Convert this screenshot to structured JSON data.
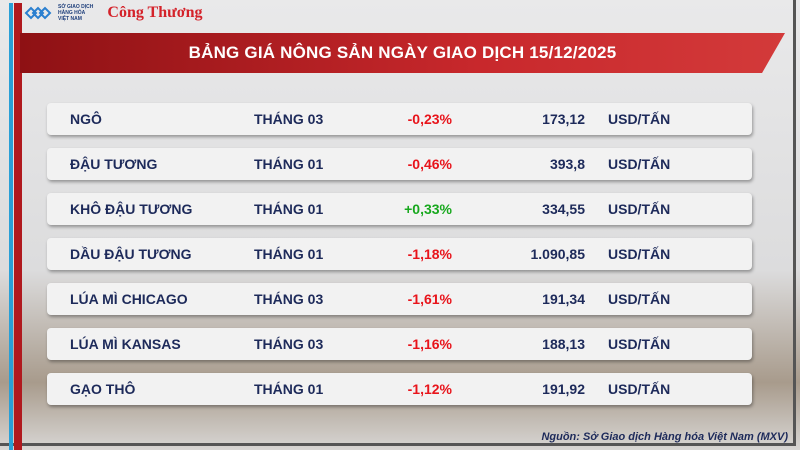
{
  "header": {
    "logo_text": "SỞ GIAO DỊCH HÀNG HÓA VIỆT NAM",
    "brand": "Công Thương",
    "title": "BẢNG GIÁ NÔNG SẢN NGÀY GIAO DỊCH 15/12/2025"
  },
  "colors": {
    "negative": "#e8141b",
    "positive": "#18a81e",
    "banner": "#c8282c",
    "text": "#1d2a5a"
  },
  "rows": [
    {
      "name": "NGÔ",
      "month": "THÁNG 03",
      "change": "-0,23%",
      "value": "173,12",
      "unit": "USD/TẤN",
      "dir": "neg"
    },
    {
      "name": "ĐẬU TƯƠNG",
      "month": "THÁNG 01",
      "change": "-0,46%",
      "value": "393,8",
      "unit": "USD/TẤN",
      "dir": "neg"
    },
    {
      "name": "KHÔ ĐẬU TƯƠNG",
      "month": "THÁNG 01",
      "change": "+0,33%",
      "value": "334,55",
      "unit": "USD/TẤN",
      "dir": "pos"
    },
    {
      "name": "DẦU ĐẬU TƯƠNG",
      "month": "THÁNG 01",
      "change": "-1,18%",
      "value": "1.090,85",
      "unit": "USD/TẤN",
      "dir": "neg"
    },
    {
      "name": "LÚA MÌ CHICAGO",
      "month": "THÁNG 03",
      "change": "-1,61%",
      "value": "191,34",
      "unit": "USD/TẤN",
      "dir": "neg"
    },
    {
      "name": "LÚA MÌ KANSAS",
      "month": "THÁNG 03",
      "change": "-1,16%",
      "value": "188,13",
      "unit": "USD/TẤN",
      "dir": "neg"
    },
    {
      "name": "GẠO THÔ",
      "month": "THÁNG 01",
      "change": "-1,12%",
      "value": "191,92",
      "unit": "USD/TẤN",
      "dir": "neg"
    }
  ],
  "source": "Nguồn: Sở Giao dịch Hàng hóa Việt Nam (MXV)"
}
